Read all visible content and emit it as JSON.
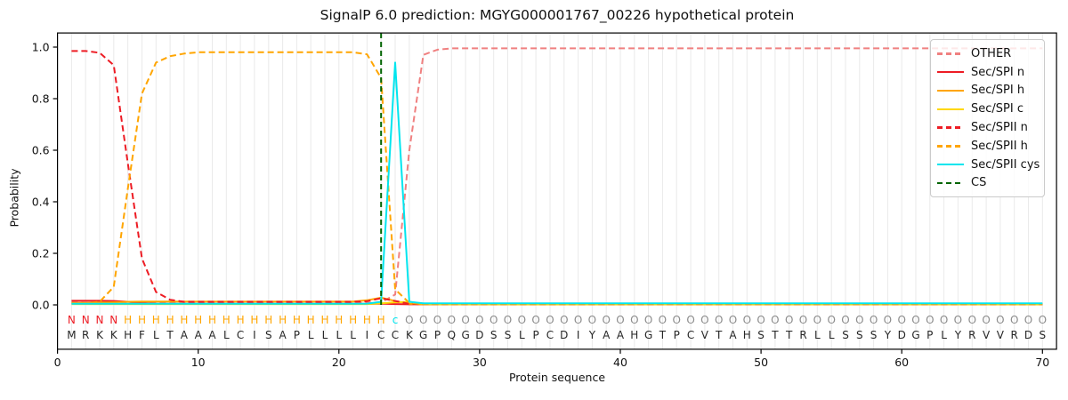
{
  "title": "SignalP 6.0 prediction: MGYG000001767_00226 hypothetical protein",
  "colors": {
    "red": "#ed1c24",
    "orange": "#ffa500",
    "gold": "#ffd700",
    "lightcoral": "#f08080",
    "cyan": "#00e5ee",
    "darkgreen": "#006400",
    "grid": "#eaeaea",
    "sequence_text": "#262626",
    "other_region_text": "#8c8c8c",
    "axis": "#000000"
  },
  "chart_data": {
    "type": "line",
    "title": "SignalP 6.0 prediction: MGYG000001767_00226 hypothetical protein",
    "xlabel": "Protein sequence",
    "ylabel": "Probability",
    "xlim": [
      0,
      71
    ],
    "ylim": [
      -0.172,
      1.055
    ],
    "x_ticks": [
      0,
      10,
      20,
      30,
      40,
      50,
      60,
      70
    ],
    "y_ticks": [
      "0.0",
      "0.2",
      "0.4",
      "0.6",
      "0.8",
      "1.0"
    ],
    "grid": "light vertical gridline at every residue position 1-70",
    "legend_position": "upper right",
    "x_note": "series values are per residue, x = 1..70",
    "series": [
      {
        "name": "OTHER",
        "color": "#f08080",
        "dash": true,
        "values": [
          0.01,
          0.008,
          0.008,
          0.008,
          0.008,
          0.008,
          0.008,
          0.008,
          0.008,
          0.008,
          0.008,
          0.008,
          0.008,
          0.008,
          0.008,
          0.008,
          0.008,
          0.008,
          0.008,
          0.008,
          0.008,
          0.008,
          0.01,
          0.04,
          0.6,
          0.97,
          0.99,
          0.995,
          0.995,
          0.995,
          0.995,
          0.995,
          0.995,
          0.995,
          0.995,
          0.995,
          0.995,
          0.995,
          0.995,
          0.995,
          0.995,
          0.995,
          0.995,
          0.995,
          0.995,
          0.995,
          0.995,
          0.995,
          0.995,
          0.995,
          0.995,
          0.995,
          0.995,
          0.995,
          0.995,
          0.995,
          0.995,
          0.995,
          0.995,
          0.995,
          0.995,
          0.995,
          0.995,
          0.995,
          0.995,
          0.995,
          0.995,
          0.995,
          0.995,
          0.995
        ]
      },
      {
        "name": "Sec/SPI n",
        "color": "#ed1c24",
        "dash": false,
        "values": [
          0.016,
          0.016,
          0.016,
          0.015,
          0.012,
          0.007,
          0.005,
          0.004,
          0.004,
          0.004,
          0.004,
          0.004,
          0.004,
          0.004,
          0.004,
          0.004,
          0.004,
          0.004,
          0.004,
          0.004,
          0.004,
          0.004,
          0.005,
          0.003,
          0.002,
          0.002,
          0.002,
          0.002,
          0.002,
          0.002,
          0.002,
          0.002,
          0.002,
          0.002,
          0.002,
          0.002,
          0.002,
          0.002,
          0.002,
          0.002,
          0.002,
          0.002,
          0.002,
          0.002,
          0.002,
          0.002,
          0.002,
          0.002,
          0.002,
          0.002,
          0.002,
          0.002,
          0.002,
          0.002,
          0.002,
          0.002,
          0.002,
          0.002,
          0.002,
          0.002,
          0.002,
          0.002,
          0.002,
          0.002,
          0.002,
          0.002,
          0.002,
          0.002,
          0.002,
          0.002
        ]
      },
      {
        "name": "Sec/SPI h",
        "color": "#ffa500",
        "dash": false,
        "values": [
          0.008,
          0.008,
          0.009,
          0.01,
          0.012,
          0.013,
          0.013,
          0.013,
          0.013,
          0.013,
          0.013,
          0.013,
          0.013,
          0.013,
          0.013,
          0.013,
          0.013,
          0.013,
          0.013,
          0.013,
          0.013,
          0.018,
          0.028,
          0.015,
          0.004,
          0.002,
          0.002,
          0.002,
          0.002,
          0.002,
          0.002,
          0.002,
          0.002,
          0.002,
          0.002,
          0.002,
          0.002,
          0.002,
          0.002,
          0.002,
          0.002,
          0.002,
          0.002,
          0.002,
          0.002,
          0.002,
          0.002,
          0.002,
          0.002,
          0.002,
          0.002,
          0.002,
          0.002,
          0.002,
          0.002,
          0.002,
          0.002,
          0.002,
          0.002,
          0.002,
          0.002,
          0.002,
          0.002,
          0.002,
          0.002,
          0.002,
          0.002,
          0.002,
          0.002,
          0.002
        ]
      },
      {
        "name": "Sec/SPI c",
        "color": "#ffd700",
        "dash": false,
        "values": [
          0.003,
          0.003,
          0.003,
          0.003,
          0.003,
          0.003,
          0.003,
          0.003,
          0.003,
          0.003,
          0.003,
          0.003,
          0.003,
          0.003,
          0.003,
          0.003,
          0.003,
          0.003,
          0.003,
          0.003,
          0.003,
          0.003,
          0.006,
          0.01,
          0.012,
          0.004,
          0.002,
          0.002,
          0.002,
          0.002,
          0.002,
          0.002,
          0.002,
          0.002,
          0.002,
          0.002,
          0.002,
          0.002,
          0.002,
          0.002,
          0.002,
          0.002,
          0.002,
          0.002,
          0.002,
          0.002,
          0.002,
          0.002,
          0.002,
          0.002,
          0.002,
          0.002,
          0.002,
          0.002,
          0.002,
          0.002,
          0.002,
          0.002,
          0.002,
          0.002,
          0.002,
          0.002,
          0.002,
          0.002,
          0.002,
          0.002,
          0.002,
          0.002,
          0.002,
          0.002
        ]
      },
      {
        "name": "Sec/SPII n",
        "color": "#ed1c24",
        "dash": true,
        "values": [
          0.985,
          0.985,
          0.978,
          0.93,
          0.55,
          0.18,
          0.05,
          0.02,
          0.012,
          0.012,
          0.012,
          0.012,
          0.012,
          0.012,
          0.012,
          0.012,
          0.012,
          0.012,
          0.012,
          0.012,
          0.012,
          0.014,
          0.026,
          0.015,
          0.004,
          0.002,
          0.002,
          0.002,
          0.002,
          0.002,
          0.002,
          0.002,
          0.002,
          0.002,
          0.002,
          0.002,
          0.002,
          0.002,
          0.002,
          0.002,
          0.002,
          0.002,
          0.002,
          0.002,
          0.002,
          0.002,
          0.002,
          0.002,
          0.002,
          0.002,
          0.002,
          0.002,
          0.002,
          0.002,
          0.002,
          0.002,
          0.002,
          0.002,
          0.002,
          0.002,
          0.002,
          0.002,
          0.002,
          0.002,
          0.002,
          0.002,
          0.002,
          0.002,
          0.002,
          0.002
        ]
      },
      {
        "name": "Sec/SPII h",
        "color": "#ffa500",
        "dash": true,
        "values": [
          0.006,
          0.006,
          0.012,
          0.07,
          0.45,
          0.82,
          0.94,
          0.965,
          0.975,
          0.98,
          0.98,
          0.98,
          0.98,
          0.98,
          0.98,
          0.98,
          0.98,
          0.98,
          0.98,
          0.98,
          0.98,
          0.972,
          0.88,
          0.06,
          0.008,
          0.002,
          0.002,
          0.002,
          0.002,
          0.002,
          0.002,
          0.002,
          0.002,
          0.002,
          0.002,
          0.002,
          0.002,
          0.002,
          0.002,
          0.002,
          0.002,
          0.002,
          0.002,
          0.002,
          0.002,
          0.002,
          0.002,
          0.002,
          0.002,
          0.002,
          0.002,
          0.002,
          0.002,
          0.002,
          0.002,
          0.002,
          0.002,
          0.002,
          0.002,
          0.002,
          0.002,
          0.002,
          0.002,
          0.002,
          0.002,
          0.002,
          0.002,
          0.002,
          0.002,
          0.002
        ]
      },
      {
        "name": "Sec/SPII cys",
        "color": "#00e5ee",
        "dash": false,
        "values": [
          0.004,
          0.004,
          0.004,
          0.004,
          0.004,
          0.004,
          0.004,
          0.004,
          0.004,
          0.004,
          0.004,
          0.004,
          0.004,
          0.004,
          0.004,
          0.004,
          0.004,
          0.004,
          0.004,
          0.004,
          0.004,
          0.005,
          0.012,
          0.94,
          0.012,
          0.006,
          0.006,
          0.006,
          0.006,
          0.006,
          0.006,
          0.006,
          0.006,
          0.006,
          0.006,
          0.006,
          0.006,
          0.006,
          0.006,
          0.006,
          0.006,
          0.006,
          0.006,
          0.006,
          0.006,
          0.006,
          0.006,
          0.006,
          0.006,
          0.006,
          0.006,
          0.006,
          0.006,
          0.006,
          0.006,
          0.006,
          0.006,
          0.006,
          0.006,
          0.006,
          0.006,
          0.006,
          0.006,
          0.006,
          0.006,
          0.006,
          0.006,
          0.006,
          0.006,
          0.006
        ]
      }
    ],
    "cs_line": {
      "name": "CS",
      "x": 23,
      "color": "#006400",
      "dash": true
    },
    "sequence": "MRKKHFLTAAALCISAPLLLLICCKGPQGDSSLPCDIYAAHGTPCVTAHSTTRLLSSSYDGPLYRVVRDS",
    "region_labels": "NNNNHHHHHHHHHHHHHHHHHHHcOOOOOOOOOOOOOOOOOOOOOOOOOOOOOOOOOOOOOOOOOOOOOO",
    "region_colors": {
      "N": "#ed1c24",
      "H": "#ffa500",
      "c": "#00e5ee",
      "O": "#8c8c8c"
    }
  },
  "legend": {
    "items": [
      {
        "label": "OTHER",
        "color": "#f08080",
        "dash": true
      },
      {
        "label": "Sec/SPI n",
        "color": "#ed1c24",
        "dash": false
      },
      {
        "label": "Sec/SPI h",
        "color": "#ffa500",
        "dash": false
      },
      {
        "label": "Sec/SPI c",
        "color": "#ffd700",
        "dash": false
      },
      {
        "label": "Sec/SPII n",
        "color": "#ed1c24",
        "dash": true
      },
      {
        "label": "Sec/SPII h",
        "color": "#ffa500",
        "dash": true
      },
      {
        "label": "Sec/SPII cys",
        "color": "#00e5ee",
        "dash": false
      },
      {
        "label": "CS",
        "color": "#006400",
        "dash": true
      }
    ]
  }
}
